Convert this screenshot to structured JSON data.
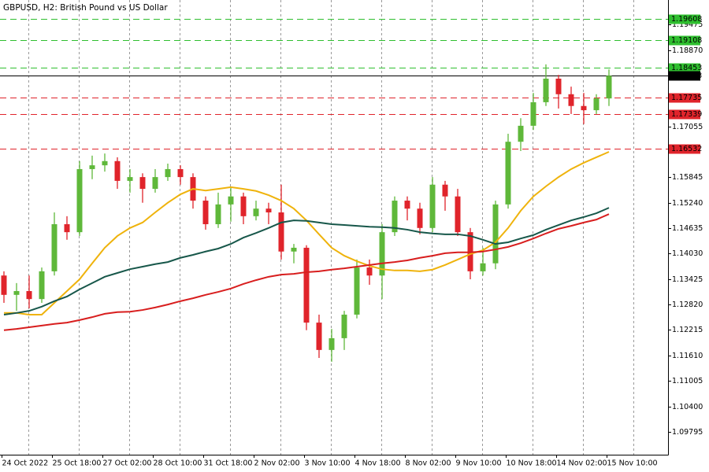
{
  "chart_data": {
    "type": "candlestick",
    "title": "GBPUSD, H2:  British Pound vs US Dollar",
    "categories": [
      "24 Oct 2022",
      null,
      null,
      null,
      "25 Oct 18:00",
      null,
      null,
      null,
      "27 Oct 02:00",
      null,
      null,
      null,
      "28 Oct 10:00",
      null,
      null,
      null,
      "31 Oct 18:00",
      null,
      null,
      null,
      "2 Nov 02:00",
      null,
      null,
      null,
      "3 Nov 10:00",
      null,
      null,
      null,
      "4 Nov 18:00",
      null,
      null,
      null,
      "8 Nov 02:00",
      null,
      null,
      null,
      "9 Nov 10:00",
      null,
      null,
      null,
      "10 Nov 18:00",
      null,
      null,
      null,
      "14 Nov 02:00",
      null,
      null,
      null,
      "15 Nov 10:00"
    ],
    "open": [
      1.1351,
      1.1305,
      1.1314,
      1.1295,
      1.1361,
      1.1473,
      1.1454,
      1.1604,
      1.1613,
      1.1623,
      1.1576,
      1.1585,
      1.1557,
      1.1585,
      1.1604,
      1.1585,
      1.1529,
      1.1473,
      1.152,
      1.1539,
      1.1492,
      1.151,
      1.1501,
      1.1408,
      1.1417,
      1.1239,
      1.1174,
      1.1202,
      1.1258,
      1.137,
      1.1351,
      1.1454,
      1.1529,
      1.151,
      1.1464,
      1.1567,
      1.1539,
      1.1454,
      1.1361,
      1.138,
      1.152,
      1.1669,
      1.1707,
      1.1763,
      1.1819,
      1.1782,
      1.1754,
      1.1744,
      1.1772
    ],
    "high": [
      1.1361,
      1.1333,
      1.1351,
      1.137,
      1.1501,
      1.1492,
      1.1623,
      1.1636,
      1.1641,
      1.1632,
      1.1604,
      1.1594,
      1.1604,
      1.1617,
      1.1613,
      1.1594,
      1.1539,
      1.1548,
      1.1561,
      1.1548,
      1.1529,
      1.1524,
      1.1567,
      1.1426,
      1.1423,
      1.1258,
      1.1224,
      1.1267,
      1.1389,
      1.1389,
      1.1473,
      1.1539,
      1.1539,
      1.1524,
      1.1585,
      1.1576,
      1.1557,
      1.1464,
      1.1417,
      1.1529,
      1.1688,
      1.1725,
      1.1785,
      1.1853,
      1.1828,
      1.18,
      1.1785,
      1.1782,
      1.1841
    ],
    "low": [
      1.1286,
      1.1267,
      1.1273,
      1.1286,
      1.1351,
      1.1436,
      1.1445,
      1.158,
      1.1598,
      1.1557,
      1.1548,
      1.1524,
      1.1548,
      1.1576,
      1.1567,
      1.151,
      1.146,
      1.1464,
      1.1479,
      1.1473,
      1.1482,
      1.1473,
      1.1389,
      1.138,
      1.1221,
      1.1155,
      1.1146,
      1.1174,
      1.1249,
      1.1329,
      1.1295,
      1.1445,
      1.1482,
      1.1449,
      1.1454,
      1.1505,
      1.1445,
      1.1342,
      1.1351,
      1.1366,
      1.151,
      1.1647,
      1.1697,
      1.1754,
      1.1748,
      1.1735,
      1.1711,
      1.1735,
      1.1754
    ],
    "close": [
      1.1305,
      1.1314,
      1.1295,
      1.1361,
      1.1473,
      1.1454,
      1.1604,
      1.1613,
      1.1623,
      1.1576,
      1.1585,
      1.1557,
      1.1585,
      1.1604,
      1.1585,
      1.1529,
      1.1473,
      1.152,
      1.1539,
      1.1492,
      1.151,
      1.1501,
      1.1408,
      1.1417,
      1.1239,
      1.1174,
      1.1202,
      1.1258,
      1.137,
      1.1351,
      1.1454,
      1.1529,
      1.151,
      1.1464,
      1.1567,
      1.1539,
      1.1454,
      1.1361,
      1.138,
      1.152,
      1.1669,
      1.1707,
      1.1763,
      1.1819,
      1.1782,
      1.1754,
      1.1744,
      1.1772,
      1.1826
    ],
    "up_color": "#5fb83a",
    "down_color": "#e0242b",
    "lines": [
      {
        "color": "#efb30c",
        "values": [
          1.1262,
          1.1262,
          1.1258,
          1.1258,
          1.1286,
          1.1314,
          1.1342,
          1.138,
          1.1417,
          1.1445,
          1.1464,
          1.1477,
          1.1501,
          1.1524,
          1.1544,
          1.1557,
          1.1553,
          1.1557,
          1.1561,
          1.1557,
          1.1552,
          1.1542,
          1.1529,
          1.151,
          1.1482,
          1.1449,
          1.1417,
          1.1398,
          1.1385,
          1.1374,
          1.1366,
          1.1363,
          1.1363,
          1.1361,
          1.1365,
          1.1376,
          1.1389,
          1.1402,
          1.1411,
          1.143,
          1.1464,
          1.1505,
          1.1539,
          1.1563,
          1.1585,
          1.1604,
          1.1619,
          1.1632,
          1.1645
        ]
      },
      {
        "color": "#17574a",
        "values": [
          1.1258,
          1.1262,
          1.1267,
          1.1277,
          1.129,
          1.1301,
          1.1318,
          1.1333,
          1.1348,
          1.1357,
          1.1366,
          1.1372,
          1.1378,
          1.1383,
          1.1393,
          1.14,
          1.1408,
          1.1415,
          1.1426,
          1.1441,
          1.1452,
          1.1464,
          1.1477,
          1.1482,
          1.1481,
          1.1477,
          1.1473,
          1.1471,
          1.1469,
          1.1467,
          1.1466,
          1.1464,
          1.146,
          1.1454,
          1.1451,
          1.1449,
          1.1449,
          1.1445,
          1.1436,
          1.1426,
          1.143,
          1.1439,
          1.1447,
          1.146,
          1.1471,
          1.1482,
          1.149,
          1.1499,
          1.1512
        ]
      },
      {
        "color": "#d81e1e",
        "values": [
          1.1221,
          1.1224,
          1.1228,
          1.1232,
          1.1236,
          1.1239,
          1.1245,
          1.1252,
          1.126,
          1.1264,
          1.1265,
          1.1269,
          1.1275,
          1.1282,
          1.129,
          1.1297,
          1.1305,
          1.1312,
          1.132,
          1.1331,
          1.134,
          1.1348,
          1.1353,
          1.1355,
          1.1359,
          1.1361,
          1.1365,
          1.1368,
          1.1372,
          1.1376,
          1.138,
          1.1383,
          1.1387,
          1.1393,
          1.1398,
          1.1404,
          1.1406,
          1.1406,
          1.1408,
          1.1413,
          1.1419,
          1.1428,
          1.1439,
          1.1451,
          1.1462,
          1.1469,
          1.1477,
          1.1484,
          1.1497
        ]
      }
    ],
    "levels": [
      {
        "value": 1.19608,
        "color": "#2fbf2f",
        "text_color": "#000000",
        "style": "dashed"
      },
      {
        "value": 1.19108,
        "color": "#2fbf2f",
        "text_color": "#000000",
        "style": "dashed"
      },
      {
        "value": 1.18453,
        "color": "#2fbf2f",
        "text_color": "#000000",
        "style": "dashed"
      },
      {
        "value": 1.18263,
        "color": "#000000",
        "text_color": "#ffffff",
        "style": "solid"
      },
      {
        "value": 1.17735,
        "color": "#e0242b",
        "text_color": "#ffffff",
        "style": "dashed"
      },
      {
        "value": 1.17339,
        "color": "#e0242b",
        "text_color": "#ffffff",
        "style": "dashed"
      },
      {
        "value": 1.16532,
        "color": "#e0242b",
        "text_color": "#ffffff",
        "style": "dashed"
      }
    ],
    "ylim": [
      1.0925,
      1.2006
    ],
    "yticks": [
      1.19475,
      {
        "value": 1.1887,
        "label": "1.18870"
      },
      1.17055,
      1.15845,
      {
        "value": 1.1524,
        "label": "1.15240"
      },
      1.14635,
      {
        "value": 1.1403,
        "label": "1.14030"
      },
      1.13425,
      {
        "value": 1.1282,
        "label": "1.12820"
      },
      1.12215,
      {
        "value": 1.1161,
        "label": "1.11610"
      },
      1.11005,
      {
        "value": 1.104,
        "label": "1.10400"
      },
      1.09795
    ]
  }
}
